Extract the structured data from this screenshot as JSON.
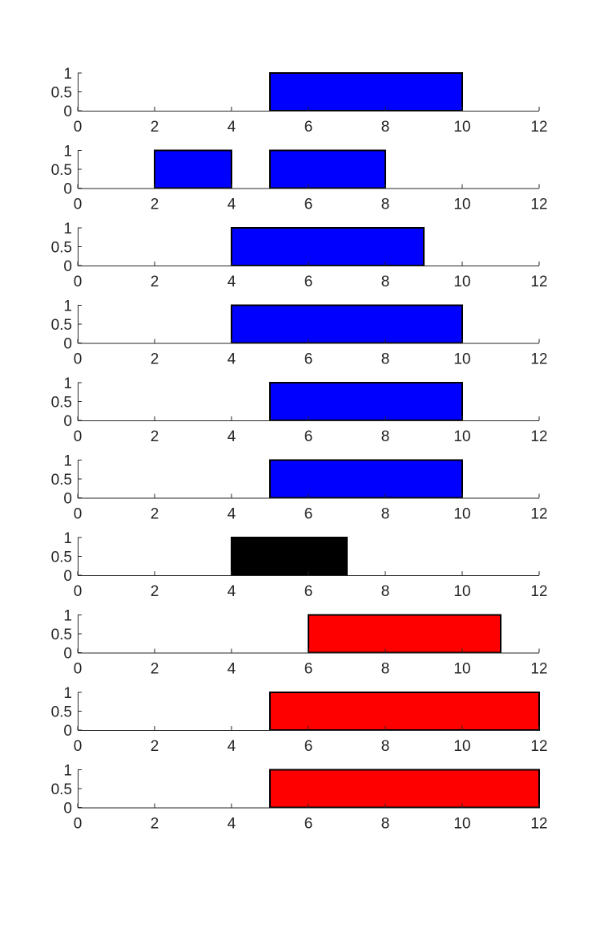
{
  "chart_data": [
    {
      "type": "bar",
      "xlim": [
        0,
        12
      ],
      "ylim": [
        0,
        1
      ],
      "xticks": [
        "0",
        "2",
        "4",
        "6",
        "8",
        "10",
        "12"
      ],
      "yticks": [
        "0",
        "0.5",
        "1"
      ],
      "bars": [
        {
          "x_start": 5,
          "x_end": 10,
          "height": 1,
          "color": "#0000ff"
        }
      ]
    },
    {
      "type": "bar",
      "xlim": [
        0,
        12
      ],
      "ylim": [
        0,
        1
      ],
      "xticks": [
        "0",
        "2",
        "4",
        "6",
        "8",
        "10",
        "12"
      ],
      "yticks": [
        "0",
        "0.5",
        "1"
      ],
      "bars": [
        {
          "x_start": 2,
          "x_end": 4,
          "height": 1,
          "color": "#0000ff"
        },
        {
          "x_start": 5,
          "x_end": 8,
          "height": 1,
          "color": "#0000ff"
        }
      ]
    },
    {
      "type": "bar",
      "xlim": [
        0,
        12
      ],
      "ylim": [
        0,
        1
      ],
      "xticks": [
        "0",
        "2",
        "4",
        "6",
        "8",
        "10",
        "12"
      ],
      "yticks": [
        "0",
        "0.5",
        "1"
      ],
      "bars": [
        {
          "x_start": 4,
          "x_end": 9,
          "height": 1,
          "color": "#0000ff"
        }
      ]
    },
    {
      "type": "bar",
      "xlim": [
        0,
        12
      ],
      "ylim": [
        0,
        1
      ],
      "xticks": [
        "0",
        "2",
        "4",
        "6",
        "8",
        "10",
        "12"
      ],
      "yticks": [
        "0",
        "0.5",
        "1"
      ],
      "bars": [
        {
          "x_start": 4,
          "x_end": 10,
          "height": 1,
          "color": "#0000ff"
        }
      ]
    },
    {
      "type": "bar",
      "xlim": [
        0,
        12
      ],
      "ylim": [
        0,
        1
      ],
      "xticks": [
        "0",
        "2",
        "4",
        "6",
        "8",
        "10",
        "12"
      ],
      "yticks": [
        "0",
        "0.5",
        "1"
      ],
      "bars": [
        {
          "x_start": 5,
          "x_end": 10,
          "height": 1,
          "color": "#0000ff"
        }
      ]
    },
    {
      "type": "bar",
      "xlim": [
        0,
        12
      ],
      "ylim": [
        0,
        1
      ],
      "xticks": [
        "0",
        "2",
        "4",
        "6",
        "8",
        "10",
        "12"
      ],
      "yticks": [
        "0",
        "0.5",
        "1"
      ],
      "bars": [
        {
          "x_start": 5,
          "x_end": 10,
          "height": 1,
          "color": "#0000ff"
        }
      ]
    },
    {
      "type": "bar",
      "xlim": [
        0,
        12
      ],
      "ylim": [
        0,
        1
      ],
      "xticks": [
        "0",
        "2",
        "4",
        "6",
        "8",
        "10",
        "12"
      ],
      "yticks": [
        "0",
        "0.5",
        "1"
      ],
      "bars": [
        {
          "x_start": 4,
          "x_end": 7,
          "height": 1,
          "color": "#000000"
        }
      ]
    },
    {
      "type": "bar",
      "xlim": [
        0,
        12
      ],
      "ylim": [
        0,
        1
      ],
      "xticks": [
        "0",
        "2",
        "4",
        "6",
        "8",
        "10",
        "12"
      ],
      "yticks": [
        "0",
        "0.5",
        "1"
      ],
      "bars": [
        {
          "x_start": 6,
          "x_end": 11,
          "height": 1,
          "color": "#ff0000"
        }
      ]
    },
    {
      "type": "bar",
      "xlim": [
        0,
        12
      ],
      "ylim": [
        0,
        1
      ],
      "xticks": [
        "0",
        "2",
        "4",
        "6",
        "8",
        "10",
        "12"
      ],
      "yticks": [
        "0",
        "0.5",
        "1"
      ],
      "bars": [
        {
          "x_start": 5,
          "x_end": 12,
          "height": 1,
          "color": "#ff0000"
        }
      ]
    },
    {
      "type": "bar",
      "xlim": [
        0,
        12
      ],
      "ylim": [
        0,
        1
      ],
      "xticks": [
        "0",
        "2",
        "4",
        "6",
        "8",
        "10",
        "12"
      ],
      "yticks": [
        "0",
        "0.5",
        "1"
      ],
      "bars": [
        {
          "x_start": 5,
          "x_end": 12,
          "height": 1,
          "color": "#ff0000"
        }
      ]
    }
  ]
}
